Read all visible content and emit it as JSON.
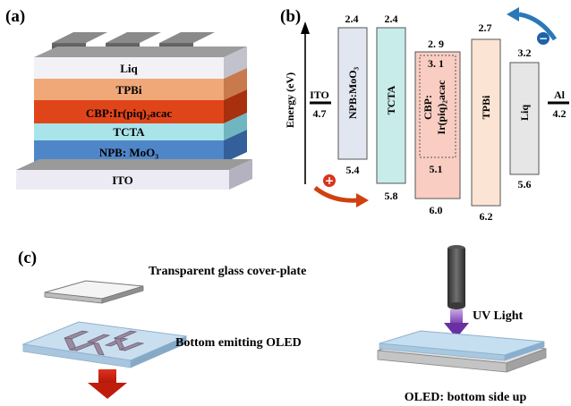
{
  "panel_a": {
    "label": "(a)",
    "layers": [
      "Liq",
      "TPBi",
      "CBP:Ir(piq)₂acac",
      "TCTA",
      "NPB: MoO₃",
      "ITO"
    ]
  },
  "panel_b": {
    "label": "(b)",
    "axis_label": "Energy (eV)",
    "ito": {
      "name": "ITO",
      "value": "4.7"
    },
    "al": {
      "name": "Al",
      "value": "4.2"
    },
    "bands": [
      {
        "name": "NPB:MoO₃",
        "top": "2.4",
        "bottom": "5.4"
      },
      {
        "name": "TCTA",
        "top": "2.4",
        "bottom": "5.8"
      },
      {
        "name": "CBP:",
        "name2": "Ir(piq)₂acac",
        "top": "2. 9",
        "bottom": "6.0",
        "inner_top": "3. 1",
        "inner_bottom": "5.1"
      },
      {
        "name": "TPBi",
        "top": "2.7",
        "bottom": "6.2"
      },
      {
        "name": "Liq",
        "top": "3.2",
        "bottom": "5.6"
      }
    ],
    "hole_sign": "+",
    "electron_sign": "−"
  },
  "panel_c": {
    "label": "(c)",
    "cover_plate": "Transparent glass cover-plate",
    "oled": "Bottom emitting OLED",
    "uv": "UV Light",
    "bottom_up": "OLED: bottom side up"
  }
}
